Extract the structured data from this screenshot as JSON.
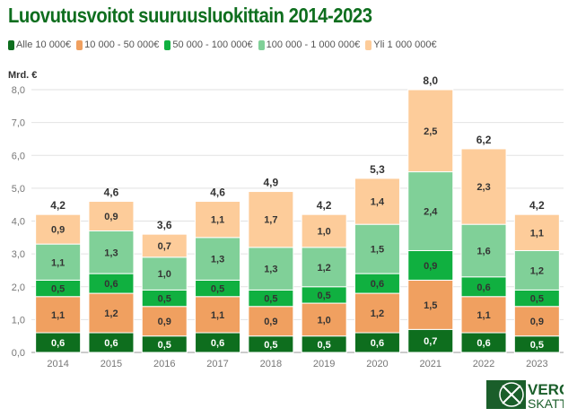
{
  "chart_data": {
    "type": "bar",
    "stacked": true,
    "title": "Luovutusvoitot suuruusluokittain 2014-2023",
    "ylabel": "Mrd. €",
    "xlabel": "",
    "ylim": [
      0,
      8
    ],
    "yticks": [
      "0,0",
      "1,0",
      "2,0",
      "3,0",
      "4,0",
      "5,0",
      "6,0",
      "7,0",
      "8,0"
    ],
    "grid": true,
    "legend_position": "top-left",
    "categories": [
      "2014",
      "2015",
      "2016",
      "2017",
      "2018",
      "2019",
      "2020",
      "2021",
      "2022",
      "2023"
    ],
    "series": [
      {
        "name": "Alle 10 000€",
        "color": "#0e6e1e",
        "values": [
          0.6,
          0.6,
          0.5,
          0.6,
          0.5,
          0.5,
          0.6,
          0.7,
          0.6,
          0.5
        ]
      },
      {
        "name": "10 000 - 50 000€",
        "color": "#f0a060",
        "values": [
          1.1,
          1.2,
          0.9,
          1.1,
          0.9,
          1.0,
          1.2,
          1.5,
          1.1,
          0.9
        ]
      },
      {
        "name": "50 000 - 100 000€",
        "color": "#10b040",
        "values": [
          0.5,
          0.6,
          0.5,
          0.5,
          0.5,
          0.5,
          0.6,
          0.9,
          0.6,
          0.5
        ]
      },
      {
        "name": "100 000 - 1 000 000€",
        "color": "#80d098",
        "values": [
          1.1,
          1.3,
          1.0,
          1.3,
          1.3,
          1.2,
          1.5,
          2.4,
          1.6,
          1.2
        ]
      },
      {
        "name": "Yli 1 000 000€",
        "color": "#fdcc9a",
        "values": [
          0.9,
          0.9,
          0.7,
          1.1,
          1.7,
          1.0,
          1.4,
          2.5,
          2.3,
          1.1
        ]
      }
    ],
    "totals": [
      4.2,
      4.6,
      3.6,
      4.6,
      4.9,
      4.2,
      5.3,
      8.0,
      6.2,
      4.2
    ]
  },
  "logo": {
    "text_top": "VERO",
    "text_bottom": "SKATT",
    "color": "#1a5e2a"
  }
}
